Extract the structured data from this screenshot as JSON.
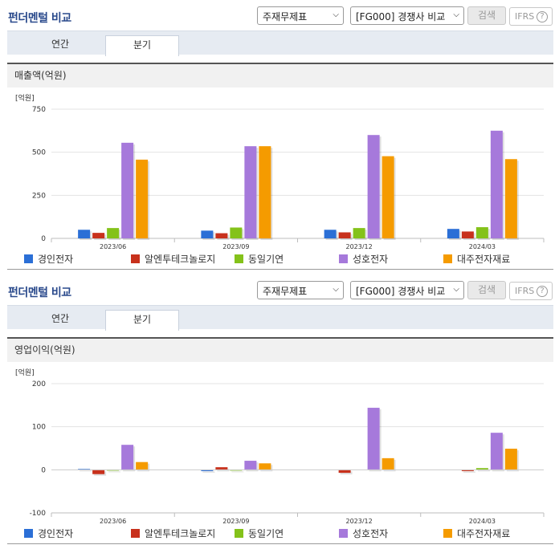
{
  "panels": [
    {
      "title": "펀더멘털 비교",
      "select_statement": "주재무제표",
      "select_compare": "[FG000] 경쟁사 비교",
      "search_label": "검색",
      "ifrs_label": "IFRS",
      "help_glyph": "?",
      "tabs": [
        "연간",
        "분기"
      ],
      "active_tab": "분기",
      "metric_label": "매출액(억원)",
      "chart_data": {
        "type": "bar",
        "unit_label": "[억원]",
        "categories": [
          "2023/06",
          "2023/09",
          "2023/12",
          "2024/03"
        ],
        "ylim": [
          0,
          750
        ],
        "yticks": [
          0,
          250,
          500,
          750
        ],
        "ytick_labels": [
          "0",
          "250",
          "500",
          "750"
        ],
        "legend": "bottom",
        "series": [
          {
            "name": "경인전자",
            "color": "#2b6fd6",
            "values": [
              50,
              45,
              50,
              55
            ]
          },
          {
            "name": "알엔투테크놀로지",
            "color": "#c8311c",
            "values": [
              32,
              30,
              35,
              40
            ]
          },
          {
            "name": "동일기연",
            "color": "#84c21a",
            "values": [
              60,
              63,
              60,
              65
            ]
          },
          {
            "name": "성호전자",
            "color": "#a679db",
            "values": [
              555,
              535,
              600,
              625
            ]
          },
          {
            "name": "대주전자재료",
            "color": "#f59b00",
            "values": [
              457,
              535,
              477,
              460
            ]
          }
        ]
      }
    },
    {
      "title": "펀더멘털 비교",
      "select_statement": "주재무제표",
      "select_compare": "[FG000] 경쟁사 비교",
      "search_label": "검색",
      "ifrs_label": "IFRS",
      "help_glyph": "?",
      "tabs": [
        "연간",
        "분기"
      ],
      "active_tab": "분기",
      "metric_label": "영업이익(억원)",
      "chart_data": {
        "type": "bar",
        "unit_label": "[억원]",
        "categories": [
          "2023/06",
          "2023/09",
          "2023/12",
          "2024/03"
        ],
        "ylim": [
          -100,
          200
        ],
        "yticks": [
          -100,
          0,
          100,
          200
        ],
        "ytick_labels": [
          "-100",
          "0",
          "100",
          "200"
        ],
        "legend": "bottom",
        "series": [
          {
            "name": "경인전자",
            "color": "#2b6fd6",
            "values": [
              2,
              -3,
              0,
              0
            ]
          },
          {
            "name": "알엔투테크놀로지",
            "color": "#c8311c",
            "values": [
              -10,
              6,
              -7,
              -3
            ]
          },
          {
            "name": "동일기연",
            "color": "#84c21a",
            "values": [
              -2,
              -2,
              0,
              4
            ]
          },
          {
            "name": "성호전자",
            "color": "#a679db",
            "values": [
              58,
              21,
              144,
              86
            ]
          },
          {
            "name": "대주전자재료",
            "color": "#f59b00",
            "values": [
              18,
              15,
              27,
              49
            ]
          }
        ]
      }
    }
  ]
}
